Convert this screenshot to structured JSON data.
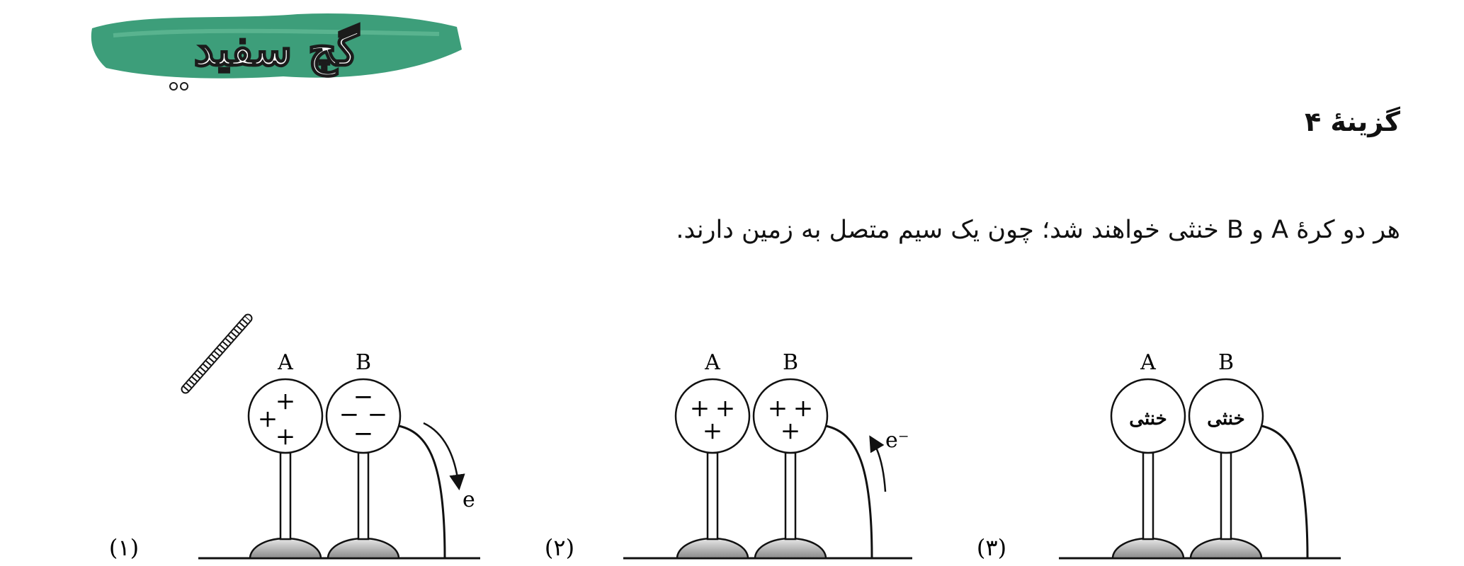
{
  "logo": {
    "text": "گچ سفید",
    "color": "#3d9e7a"
  },
  "answer": {
    "label": "گزینهٔ ۴"
  },
  "explanation": {
    "text": "هر دو کرهٔ A و B خنثی خواهند شد؛ چون یک سیم متصل به زمین دارند."
  },
  "diagrams": [
    {
      "number": "(۱)",
      "sphere_a": {
        "label": "A",
        "charges": [
          "+",
          "+",
          "+"
        ]
      },
      "sphere_b": {
        "label": "B",
        "charges": [
          "−",
          "−",
          "−",
          "−"
        ]
      },
      "electron_label": "e",
      "electron_direction": "down",
      "has_rod": true
    },
    {
      "number": "(۲)",
      "sphere_a": {
        "label": "A",
        "charges": [
          "+",
          "+",
          "+"
        ]
      },
      "sphere_b": {
        "label": "B",
        "charges": [
          "+",
          "+",
          "+"
        ]
      },
      "electron_label": "e⁻",
      "electron_direction": "up",
      "has_rod": false
    },
    {
      "number": "(۳)",
      "sphere_a": {
        "label": "A",
        "text": "خنثی"
      },
      "sphere_b": {
        "label": "B",
        "text": "خنثی"
      },
      "has_rod": false
    }
  ]
}
